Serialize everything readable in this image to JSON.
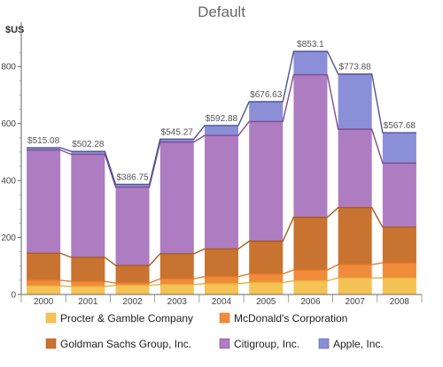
{
  "chart_data": {
    "type": "bar",
    "stacked": true,
    "title": "Default",
    "ylabel": "$US",
    "xlabel": "",
    "ylim": [
      0,
      900
    ],
    "yticks": [
      0,
      200,
      400,
      600,
      800
    ],
    "categories": [
      "2000",
      "2001",
      "2002",
      "2003",
      "2004",
      "2005",
      "2006",
      "2007",
      "2008"
    ],
    "totals": [
      "$515.08",
      "$502.28",
      "$386.75",
      "$545.27",
      "$592.88",
      "$676.63",
      "$853.1",
      "$773.88",
      "$567.68"
    ],
    "total_values": [
      515.08,
      502.28,
      386.75,
      545.27,
      592.88,
      676.63,
      853.1,
      773.88,
      567.68
    ],
    "series": [
      {
        "name": "Procter & Gamble Company",
        "color": "#F5C255",
        "edge": "#E8B040",
        "values": [
          30,
          28,
          32,
          35,
          38,
          42,
          48,
          58,
          58
        ]
      },
      {
        "name": "McDonald's Corporation",
        "color": "#F08B3A",
        "edge": "#E37A2C",
        "values": [
          20,
          18,
          8,
          20,
          25,
          30,
          38,
          47,
          53
        ]
      },
      {
        "name": "Goldman Sachs Group, Inc.",
        "color": "#C8732F",
        "edge": "#A65D24",
        "values": [
          95,
          84,
          62,
          88,
          97,
          115,
          185,
          200,
          125
        ]
      },
      {
        "name": "Citigroup, Inc.",
        "color": "#AE7CC0",
        "edge": "#7D4E8E",
        "values": [
          362,
          362,
          275,
          392,
          398,
          420,
          500,
          275,
          225
        ]
      },
      {
        "name": "Apple, Inc.",
        "color": "#8B8FD8",
        "edge": "#4E5590",
        "values": [
          8.08,
          10.28,
          9.75,
          10.27,
          34.88,
          69.63,
          82.1,
          193.88,
          106.68
        ]
      }
    ],
    "legend_position": "bottom",
    "grid": false
  }
}
